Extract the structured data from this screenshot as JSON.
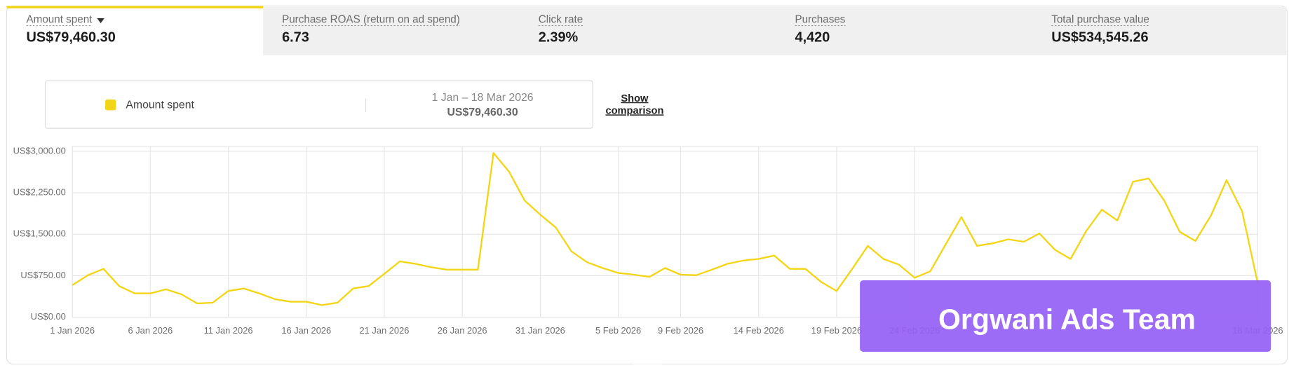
{
  "metrics": [
    {
      "label": "Amount spent",
      "value": "US$79,460.30"
    },
    {
      "label": "Purchase ROAS (return on ad spend)",
      "value": "6.73"
    },
    {
      "label": "Click rate",
      "value": "2.39%"
    },
    {
      "label": "Purchases",
      "value": "4,420"
    },
    {
      "label": "Total purchase value",
      "value": "US$534,545.26"
    }
  ],
  "legend_panel": {
    "name": "Amount spent",
    "date_range": "1 Jan – 18 Mar 2026",
    "total": "US$79,460.30",
    "comparison": [
      "Show",
      "comparison"
    ]
  },
  "watermark": "Orgwani Ads Team",
  "chart_data": {
    "type": "line",
    "categories": [
      "1 Jan 2026",
      null,
      null,
      null,
      null,
      "6 Jan 2026",
      null,
      null,
      null,
      null,
      "11 Jan 2026",
      null,
      null,
      null,
      null,
      "16 Jan 2026",
      null,
      null,
      null,
      null,
      "21 Jan 2026",
      null,
      null,
      null,
      null,
      "26 Jan 2026",
      null,
      null,
      null,
      null,
      "31 Jan 2026",
      null,
      null,
      null,
      null,
      "5 Feb 2026",
      null,
      null,
      null,
      "9 Feb 2026",
      null,
      null,
      null,
      null,
      "14 Feb 2026",
      null,
      null,
      null,
      null,
      "19 Feb 2026",
      null,
      null,
      null,
      null,
      "24 Feb 2026",
      null,
      null,
      null,
      null,
      null,
      null,
      null,
      null,
      null,
      null,
      null,
      null,
      null,
      null,
      null,
      null,
      null,
      null,
      null,
      null,
      null,
      "18 Mar 2026"
    ],
    "series": [
      {
        "name": "Amount spent",
        "color": "#f2d616",
        "values": [
          580,
          760,
          875,
          565,
          430,
          430,
          505,
          415,
          250,
          265,
          475,
          520,
          430,
          325,
          280,
          280,
          220,
          265,
          520,
          565,
          785,
          1010,
          965,
          905,
          860,
          860,
          860,
          2970,
          2630,
          2110,
          1855,
          1620,
          1190,
          995,
          890,
          800,
          770,
          730,
          890,
          770,
          760,
          860,
          965,
          1025,
          1055,
          1115,
          875,
          875,
          640,
          475,
          875,
          1290,
          1055,
          950,
          715,
          830,
          1320,
          1810,
          1290,
          1335,
          1410,
          1365,
          1515,
          1220,
          1055,
          1560,
          1945,
          1750,
          2450,
          2510,
          2110,
          1545,
          1380,
          1840,
          2480,
          1915,
          610
        ]
      }
    ],
    "ylim": [
      0,
      3000
    ],
    "yticks": [
      {
        "value": 0,
        "label": "US$0.00"
      },
      {
        "value": 750,
        "label": "US$750.00"
      },
      {
        "value": 1500,
        "label": "US$1,500.00"
      },
      {
        "value": 2250,
        "label": "US$2,250.00"
      },
      {
        "value": 3000,
        "label": "US$3,000.00"
      }
    ],
    "grid": true
  }
}
